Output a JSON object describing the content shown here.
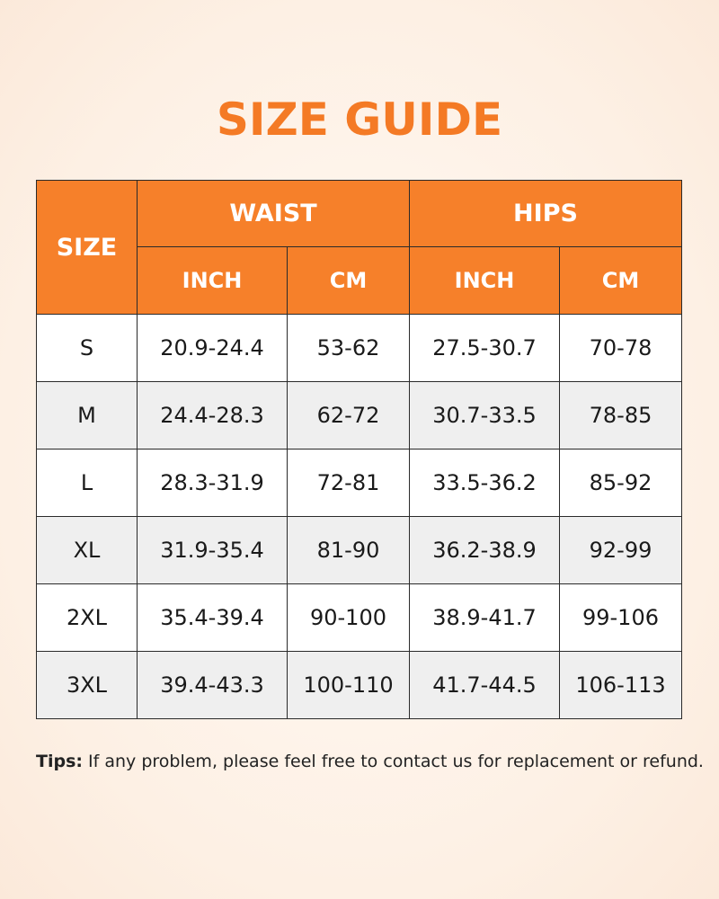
{
  "title": "SIZE GUIDE",
  "colors": {
    "accent": "#f6802a",
    "title": "#f47a25",
    "alt_row": "#efefef"
  },
  "table": {
    "size_header": "SIZE",
    "groups": [
      "WAIST",
      "HIPS"
    ],
    "units": [
      "INCH",
      "CM",
      "INCH",
      "CM"
    ],
    "rows": [
      [
        "S",
        "20.9-24.4",
        "53-62",
        "27.5-30.7",
        "70-78"
      ],
      [
        "M",
        "24.4-28.3",
        "62-72",
        "30.7-33.5",
        "78-85"
      ],
      [
        "L",
        "28.3-31.9",
        "72-81",
        "33.5-36.2",
        "85-92"
      ],
      [
        "XL",
        "31.9-35.4",
        "81-90",
        "36.2-38.9",
        "92-99"
      ],
      [
        "2XL",
        "35.4-39.4",
        "90-100",
        "38.9-41.7",
        "99-106"
      ],
      [
        "3XL",
        "39.4-43.3",
        "100-110",
        "41.7-44.5",
        "106-113"
      ]
    ]
  },
  "tips": {
    "label": "Tips:",
    "text": " If any problem, please feel free to contact us for replacement or refund."
  }
}
